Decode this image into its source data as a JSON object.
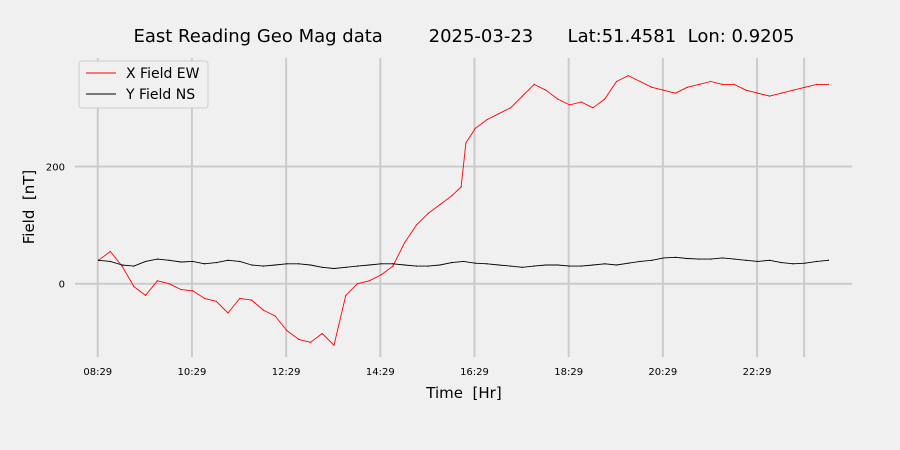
{
  "chart_data": {
    "type": "line",
    "title": "East Reading Geo Mag data        2025-03-23      Lat:51.4581  Lon: 0.9205",
    "xlabel": "Time  [Hr]",
    "ylabel": "Field  [nT]",
    "x_ticks": [
      "08:29",
      "10:29",
      "12:29",
      "14:29",
      "16:29",
      "18:29",
      "20:29",
      "22:29"
    ],
    "y_ticks": [
      0,
      200
    ],
    "x_range_hours": [
      8.0,
      24.5
    ],
    "ylim": [
      -125,
      385
    ],
    "grid": true,
    "legend_position": "top-left",
    "series": [
      {
        "name": "X Field EW",
        "color": "#ff0000",
        "x": [
          8.5,
          8.75,
          9.0,
          9.25,
          9.5,
          9.75,
          10.0,
          10.25,
          10.5,
          10.75,
          11.0,
          11.25,
          11.5,
          11.75,
          12.0,
          12.25,
          12.5,
          12.75,
          13.0,
          13.25,
          13.5,
          13.75,
          14.0,
          14.25,
          14.5,
          14.75,
          15.0,
          15.25,
          15.5,
          15.75,
          16.0,
          16.2,
          16.3,
          16.5,
          16.75,
          17.0,
          17.25,
          17.5,
          17.75,
          18.0,
          18.25,
          18.5,
          18.75,
          19.0,
          19.25,
          19.5,
          19.75,
          20.0,
          20.25,
          20.5,
          20.75,
          21.0,
          21.25,
          21.5,
          21.75,
          22.0,
          22.25,
          22.5,
          22.75,
          23.0,
          23.25,
          23.5,
          23.75,
          24.0
        ],
        "y": [
          40,
          55,
          30,
          -5,
          -20,
          5,
          0,
          -10,
          -12,
          -25,
          -30,
          -50,
          -25,
          -28,
          -45,
          -55,
          -80,
          -95,
          -100,
          -85,
          -105,
          -20,
          0,
          5,
          15,
          30,
          70,
          100,
          120,
          135,
          150,
          165,
          240,
          265,
          280,
          290,
          300,
          320,
          340,
          330,
          315,
          305,
          310,
          300,
          315,
          345,
          355,
          345,
          335,
          330,
          325,
          335,
          340,
          345,
          340,
          340,
          330,
          325,
          320,
          325,
          330,
          335,
          340,
          340
        ]
      },
      {
        "name": "Y Field NS",
        "color": "#000000",
        "x": [
          8.5,
          8.75,
          9.0,
          9.25,
          9.5,
          9.75,
          10.0,
          10.25,
          10.5,
          10.75,
          11.0,
          11.25,
          11.5,
          11.75,
          12.0,
          12.25,
          12.5,
          12.75,
          13.0,
          13.25,
          13.5,
          13.75,
          14.0,
          14.25,
          14.5,
          14.75,
          15.0,
          15.25,
          15.5,
          15.75,
          16.0,
          16.25,
          16.5,
          16.75,
          17.0,
          17.25,
          17.5,
          17.75,
          18.0,
          18.25,
          18.5,
          18.75,
          19.0,
          19.25,
          19.5,
          19.75,
          20.0,
          20.25,
          20.5,
          20.75,
          21.0,
          21.25,
          21.5,
          21.75,
          22.0,
          22.25,
          22.5,
          22.75,
          23.0,
          23.25,
          23.5,
          23.75,
          24.0
        ],
        "y": [
          40,
          38,
          32,
          30,
          38,
          42,
          40,
          37,
          38,
          34,
          36,
          40,
          38,
          32,
          30,
          32,
          34,
          34,
          32,
          28,
          26,
          28,
          30,
          32,
          34,
          34,
          32,
          30,
          30,
          32,
          36,
          38,
          35,
          34,
          32,
          30,
          28,
          30,
          32,
          32,
          30,
          30,
          32,
          34,
          32,
          35,
          38,
          40,
          44,
          45,
          43,
          42,
          42,
          44,
          42,
          40,
          38,
          40,
          36,
          34,
          35,
          38,
          40
        ]
      }
    ]
  }
}
